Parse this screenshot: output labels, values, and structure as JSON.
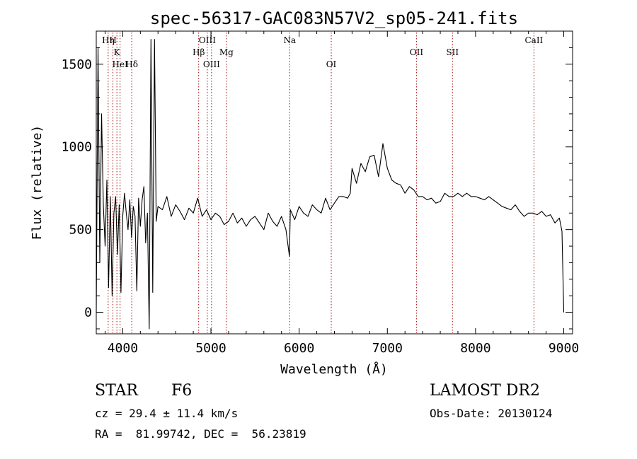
{
  "chart_data": {
    "type": "line",
    "title": "spec-56317-GAC083N57V2_sp05-241.fits",
    "xlabel": "Wavelength (Å)",
    "ylabel": "Flux (relative)",
    "xlim": [
      3700,
      9100
    ],
    "ylim": [
      -130,
      1700
    ],
    "xticks": [
      "4000",
      "5000",
      "6000",
      "7000",
      "8000",
      "9000"
    ],
    "xtick_values": [
      4000,
      5000,
      6000,
      7000,
      8000,
      9000
    ],
    "yticks": [
      "0",
      "500",
      "1000",
      "1500"
    ],
    "ytick_values": [
      0,
      500,
      1000,
      1500
    ],
    "grid": false,
    "series": [
      {
        "x": [
          3700,
          3720,
          3740,
          3760,
          3780,
          3800,
          3820,
          3840,
          3860,
          3880,
          3900,
          3920,
          3940,
          3960,
          3980,
          4000,
          4020,
          4040,
          4060,
          4080,
          4100,
          4120,
          4140,
          4160,
          4180,
          4200,
          4220,
          4240,
          4260,
          4280,
          4300,
          4320,
          4340,
          4360,
          4380,
          4400,
          4450,
          4500,
          4550,
          4600,
          4650,
          4700,
          4750,
          4800,
          4850,
          4900,
          4950,
          5000,
          5050,
          5100,
          5150,
          5200,
          5250,
          5300,
          5350,
          5400,
          5450,
          5500,
          5550,
          5600,
          5650,
          5700,
          5750,
          5800,
          5850,
          5890,
          5900,
          5950,
          6000,
          6050,
          6100,
          6150,
          6200,
          6250,
          6300,
          6350,
          6400,
          6450,
          6500,
          6550,
          6580,
          6600,
          6650,
          6700,
          6750,
          6800,
          6850,
          6900,
          6950,
          7000,
          7050,
          7100,
          7150,
          7200,
          7250,
          7300,
          7350,
          7400,
          7450,
          7500,
          7550,
          7600,
          7650,
          7700,
          7750,
          7800,
          7850,
          7900,
          7950,
          8000,
          8050,
          8100,
          8150,
          8200,
          8250,
          8300,
          8350,
          8400,
          8450,
          8500,
          8550,
          8600,
          8650,
          8700,
          8750,
          8800,
          8850,
          8900,
          8950,
          8980,
          9000
        ],
        "y": [
          0,
          1600,
          300,
          1200,
          650,
          400,
          800,
          150,
          700,
          100,
          600,
          700,
          350,
          650,
          120,
          580,
          720,
          600,
          500,
          680,
          450,
          640,
          580,
          130,
          690,
          520,
          680,
          760,
          420,
          600,
          -100,
          1650,
          120,
          1650,
          550,
          640,
          620,
          700,
          580,
          650,
          610,
          560,
          630,
          600,
          690,
          580,
          620,
          560,
          600,
          580,
          530,
          550,
          600,
          540,
          570,
          520,
          560,
          580,
          540,
          500,
          600,
          550,
          520,
          580,
          500,
          340,
          620,
          560,
          640,
          600,
          580,
          650,
          620,
          600,
          690,
          620,
          660,
          700,
          700,
          690,
          720,
          870,
          780,
          900,
          850,
          940,
          950,
          820,
          1020,
          870,
          800,
          780,
          770,
          720,
          760,
          740,
          700,
          700,
          680,
          690,
          660,
          670,
          720,
          700,
          700,
          720,
          700,
          720,
          700,
          700,
          690,
          680,
          700,
          680,
          660,
          640,
          630,
          620,
          650,
          610,
          580,
          600,
          600,
          590,
          610,
          580,
          590,
          540,
          570,
          490,
          0
        ]
      }
    ],
    "lines": [
      {
        "label": "Hη",
        "x": 3835,
        "row": 0
      },
      {
        "label": "H",
        "x": 3889,
        "row": 0
      },
      {
        "label": "K",
        "x": 3934,
        "row": 1
      },
      {
        "label": "HeI",
        "x": 3970,
        "row": 2
      },
      {
        "label": "Hδ",
        "x": 4102,
        "row": 2
      },
      {
        "label": "Hβ",
        "x": 4861,
        "row": 1
      },
      {
        "label": "OIII",
        "x": 4959,
        "row": 0
      },
      {
        "label": "OIII",
        "x": 5007,
        "row": 2
      },
      {
        "label": "Mg",
        "x": 5175,
        "row": 1
      },
      {
        "label": "Na",
        "x": 5893,
        "row": 0
      },
      {
        "label": "OI",
        "x": 6364,
        "row": 2
      },
      {
        "label": "OII",
        "x": 7330,
        "row": 1
      },
      {
        "label": "SII",
        "x": 7738,
        "row": 1
      },
      {
        "label": "CaII",
        "x": 8662,
        "row": 0
      }
    ]
  },
  "info": {
    "object_class": "STAR",
    "subclass": "F6",
    "survey": "LAMOST DR2",
    "redshift": "cz = 29.4 ± 11.4 km/s",
    "obs_date": "Obs-Date: 20130124",
    "coords": "RA =  81.99742, DEC =  56.23819"
  }
}
